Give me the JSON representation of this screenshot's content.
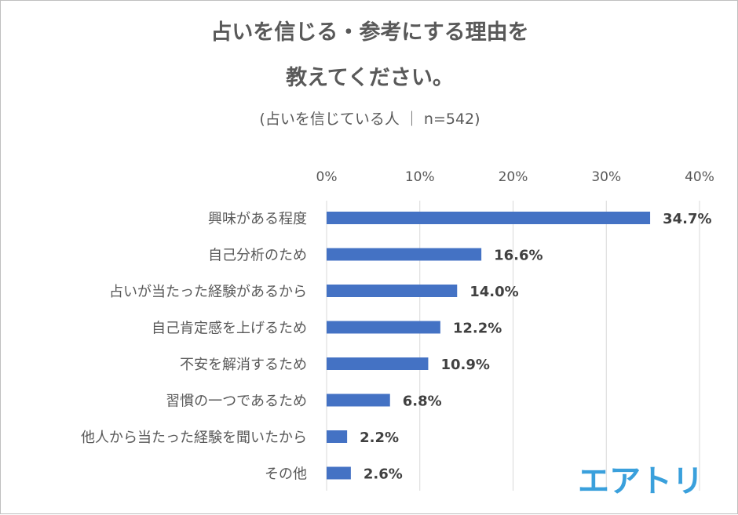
{
  "title_line1": "占いを信じる・参考にする理由を",
  "title_line2": "教えてください。",
  "subtitle": "(占いを信じている人 ｜ n=542)",
  "logo_text": "エアトリ",
  "colors": {
    "bar": "#4472C4",
    "grid": "#d9d9d9",
    "text": "#595959",
    "label": "#404040",
    "logo": "#3aa0dc"
  },
  "chart_data": {
    "type": "bar",
    "orientation": "horizontal",
    "title": "占いを信じる・参考にする理由を教えてください。",
    "subtitle": "(占いを信じている人 ｜ n=542)",
    "categories": [
      "興味がある程度",
      "自己分析のため",
      "占いが当たった経験があるから",
      "自己肯定感を上げるため",
      "不安を解消するため",
      "習慣の一つであるため",
      "他人から当たった経験を聞いたから",
      "その他"
    ],
    "values": [
      34.7,
      16.6,
      14.0,
      12.2,
      10.9,
      6.8,
      2.2,
      2.6
    ],
    "value_labels": [
      "34.7%",
      "16.6%",
      "14.0%",
      "12.2%",
      "10.9%",
      "6.8%",
      "2.2%",
      "2.6%"
    ],
    "xlim": [
      0,
      40
    ],
    "ticks": [
      0,
      10,
      20,
      30,
      40
    ],
    "tick_labels": [
      "0%",
      "10%",
      "20%",
      "30%",
      "40%"
    ],
    "xaxis_position": "top",
    "grid": true,
    "legend": false
  }
}
